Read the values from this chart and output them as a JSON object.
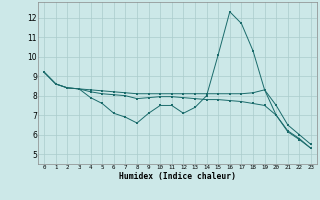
{
  "xlabel": "Humidex (Indice chaleur)",
  "xlim": [
    -0.5,
    23.5
  ],
  "ylim": [
    4.5,
    12.8
  ],
  "yticks": [
    5,
    6,
    7,
    8,
    9,
    10,
    11,
    12
  ],
  "xticks": [
    0,
    1,
    2,
    3,
    4,
    5,
    6,
    7,
    8,
    9,
    10,
    11,
    12,
    13,
    14,
    15,
    16,
    17,
    18,
    19,
    20,
    21,
    22,
    23
  ],
  "background_color": "#cce8e8",
  "grid_color": "#aacccc",
  "line_color": "#1a6b6b",
  "line1": [
    9.2,
    8.6,
    8.4,
    8.35,
    7.9,
    7.6,
    7.1,
    6.9,
    6.6,
    7.1,
    7.5,
    7.5,
    7.1,
    7.4,
    8.0,
    10.1,
    12.3,
    11.7,
    10.3,
    8.3,
    7.0,
    6.2,
    5.8,
    5.3
  ],
  "line2": [
    9.2,
    8.6,
    8.4,
    8.35,
    8.2,
    8.1,
    8.05,
    8.0,
    7.85,
    7.9,
    7.95,
    7.95,
    7.9,
    7.85,
    7.8,
    7.8,
    7.75,
    7.7,
    7.6,
    7.5,
    7.0,
    6.15,
    5.75,
    5.3
  ],
  "line3": [
    9.2,
    8.6,
    8.4,
    8.35,
    8.3,
    8.25,
    8.2,
    8.15,
    8.1,
    8.1,
    8.1,
    8.1,
    8.1,
    8.1,
    8.1,
    8.1,
    8.1,
    8.1,
    8.15,
    8.3,
    7.5,
    6.5,
    6.0,
    5.5
  ]
}
